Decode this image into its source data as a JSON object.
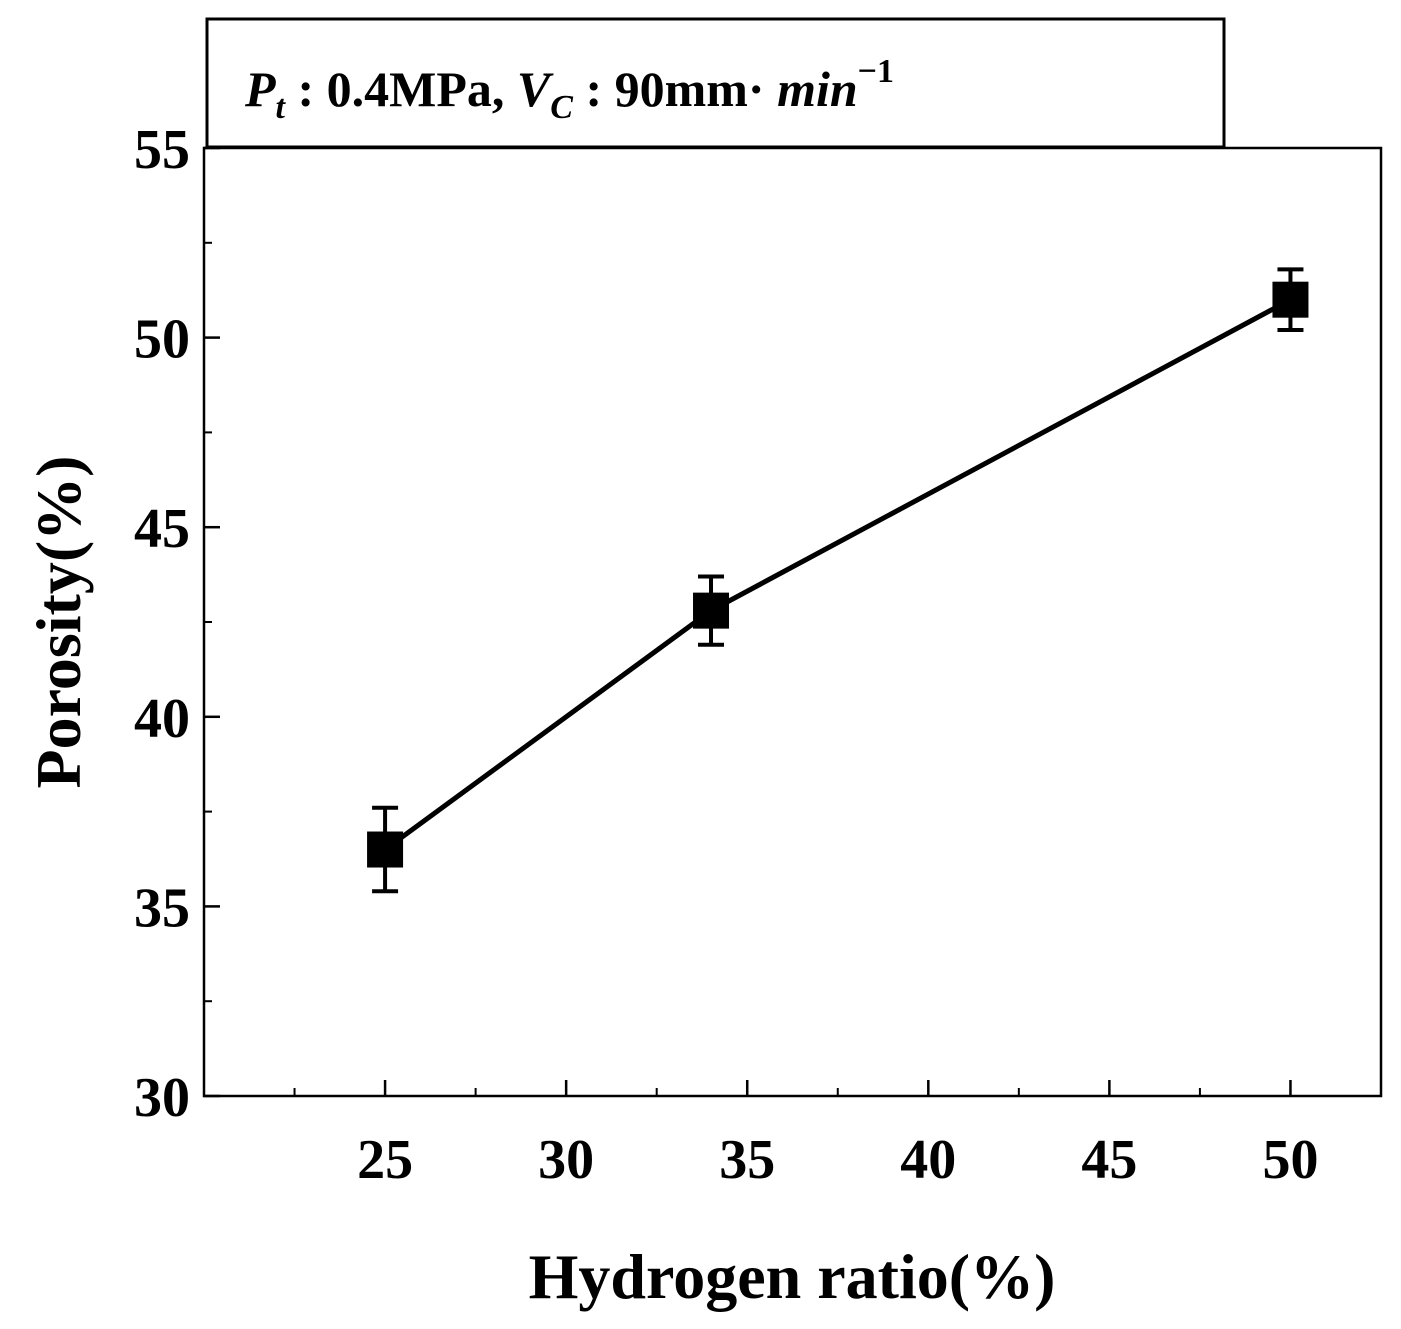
{
  "chart_data": {
    "type": "line",
    "xlabel": "Hydrogen ratio(%)",
    "ylabel": "Porosity(%)",
    "xlim": [
      20,
      52.5
    ],
    "ylim": [
      30,
      55
    ],
    "x_ticks": [
      25,
      30,
      35,
      40,
      45,
      50
    ],
    "x_tick_labels": [
      "25",
      "30",
      "35",
      "40",
      "45",
      "50"
    ],
    "y_ticks": [
      30,
      35,
      40,
      45,
      50,
      55
    ],
    "y_tick_labels": [
      "30",
      "35",
      "40",
      "45",
      "50",
      "55"
    ],
    "grid": false,
    "annotation": {
      "p_symbol": "P",
      "p_sub": "t",
      "p_value": " : 0.4MPa, ",
      "v_symbol": "V",
      "v_sub": "C",
      "v_value": " : 90mm· ",
      "unit_ital": "min",
      "unit_exp": "−1"
    },
    "series": [
      {
        "x": [
          25,
          34,
          50
        ],
        "y": [
          36.5,
          42.8,
          51.0
        ],
        "err": [
          1.1,
          0.9,
          0.8
        ],
        "color": "#000000",
        "marker": "square"
      }
    ]
  }
}
